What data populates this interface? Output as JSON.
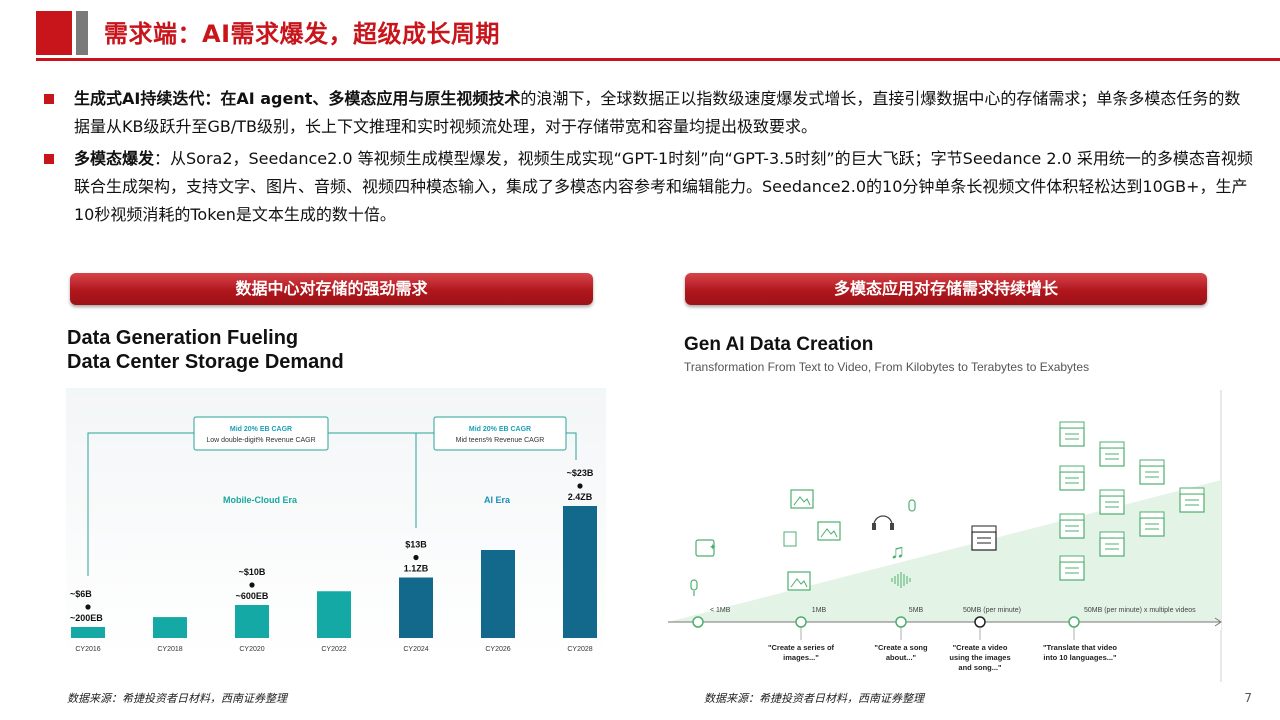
{
  "header": {
    "title": "需求端：AI需求爆发，超级成长周期"
  },
  "bullets": [
    {
      "bold": "生成式AI持续迭代：在AI agent、多模态应用与原生视频技术",
      "text": "的浪潮下，全球数据正以指数级速度爆发式增长，直接引爆数据中心的存储需求；单条多模态任务的数据量从KB级跃升至GB/TB级别，长上下文推理和实时视频流处理，对于存储带宽和容量均提出极致要求。"
    },
    {
      "bold": "多模态爆发",
      "text": "：从Sora2，Seedance2.0 等视频生成模型爆发，视频生成实现“GPT-1时刻”向“GPT-3.5时刻”的巨大飞跃；字节Seedance 2.0 采用统一的多模态音视频联合生成架构，支持文字、图片、音频、视频四种模态输入，集成了多模态内容参考和编辑能力。Seedance2.0的10分钟单条长视频文件体积轻松达到10GB+，生产10秒视频消耗的Token是文本生成的数十倍。"
    }
  ],
  "left_panel": {
    "banner": "数据中心对存储的强劲需求",
    "title_line1": "Data Generation Fueling",
    "title_line2": "Data Center Storage Demand",
    "source": "数据来源：希捷投资者日材料，西南证券整理"
  },
  "right_panel": {
    "banner": "多模态应用对存储需求持续增长",
    "title": "Gen AI Data Creation",
    "subtitle": "Transformation From Text to Video, From Kilobytes to Terabytes to Exabytes",
    "source": "数据来源：希捷投资者日材料，西南证券整理"
  },
  "page_number": "7",
  "chart_data": [
    {
      "type": "bar",
      "categories": [
        "CY2016",
        "CY2018",
        "CY2020",
        "CY2022",
        "CY2024",
        "CY2026",
        "CY2028"
      ],
      "series": [
        {
          "values": [
            200,
            380,
            600,
            850,
            1100,
            1600,
            2400
          ]
        }
      ],
      "value_labels": [
        "~$6B\n~200EB",
        "",
        "~$10B\n~600EB",
        "",
        "$13B\n1.1ZB",
        "",
        "~$23B\n2.4ZB"
      ],
      "eras": [
        {
          "name": "Mobile-Cloud Era",
          "cagr1": "Mid 20% EB CAGR",
          "cagr2": "Low double-digit% Revenue CAGR"
        },
        {
          "name": "AI Era",
          "cagr1": "Mid 20% EB CAGR",
          "cagr2": "Mid teens% Revenue CAGR"
        }
      ],
      "colors": {
        "light_bar": "#14a9a4",
        "dark_bar": "#13698c"
      }
    },
    {
      "type": "line",
      "x": [
        "< 1MB",
        "1MB",
        "5MB",
        "50MB (per minute)",
        "50MB (per minute) x multiple videos"
      ],
      "annotations": [
        "\"Create a series of\nimages...\"",
        "\"Create a song\nabout...\"",
        "\"Create a video\nusing the images\nand song...\"",
        "\"Translate that video\ninto 10 languages...\""
      ],
      "icons": [
        "chat-icon",
        "microphone-icon",
        "image-icon",
        "headphones-icon",
        "music-note-icon",
        "audio-wave-icon",
        "clapperboard-icon"
      ],
      "colors": {
        "accent": "#4caf6e",
        "wedge": "#e3f3e6"
      }
    }
  ]
}
